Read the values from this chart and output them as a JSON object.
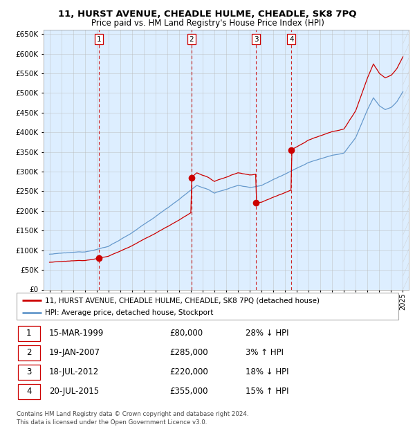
{
  "title": "11, HURST AVENUE, CHEADLE HULME, CHEADLE, SK8 7PQ",
  "subtitle": "Price paid vs. HM Land Registry's House Price Index (HPI)",
  "transactions": [
    {
      "num": 1,
      "date": "15-MAR-1999",
      "price": 80000,
      "pct": "28%",
      "dir": "↓",
      "year": 1999.21
    },
    {
      "num": 2,
      "date": "19-JAN-2007",
      "price": 285000,
      "pct": "3%",
      "dir": "↑",
      "year": 2007.05
    },
    {
      "num": 3,
      "date": "18-JUL-2012",
      "price": 220000,
      "pct": "18%",
      "dir": "↓",
      "year": 2012.54
    },
    {
      "num": 4,
      "date": "20-JUL-2015",
      "price": 355000,
      "pct": "15%",
      "dir": "↑",
      "year": 2015.54
    }
  ],
  "legend_house": "11, HURST AVENUE, CHEADLE HULME, CHEADLE, SK8 7PQ (detached house)",
  "legend_hpi": "HPI: Average price, detached house, Stockport",
  "footer1": "Contains HM Land Registry data © Crown copyright and database right 2024.",
  "footer2": "This data is licensed under the Open Government Licence v3.0.",
  "house_color": "#cc0000",
  "hpi_color": "#6699cc",
  "background_color": "#ddeeff",
  "grid_color": "#bbbbbb",
  "ylim": [
    0,
    660000
  ],
  "yticks": [
    0,
    50000,
    100000,
    150000,
    200000,
    250000,
    300000,
    350000,
    400000,
    450000,
    500000,
    550000,
    600000,
    650000
  ],
  "xlim_start": 1994.5,
  "xlim_end": 2025.5,
  "table_rows": [
    [
      1,
      "15-MAR-1999",
      "£80,000",
      "28% ↓ HPI"
    ],
    [
      2,
      "19-JAN-2007",
      "£285,000",
      "3% ↑ HPI"
    ],
    [
      3,
      "18-JUL-2012",
      "£220,000",
      "18% ↓ HPI"
    ],
    [
      4,
      "20-JUL-2015",
      "£355,000",
      "15% ↑ HPI"
    ]
  ]
}
